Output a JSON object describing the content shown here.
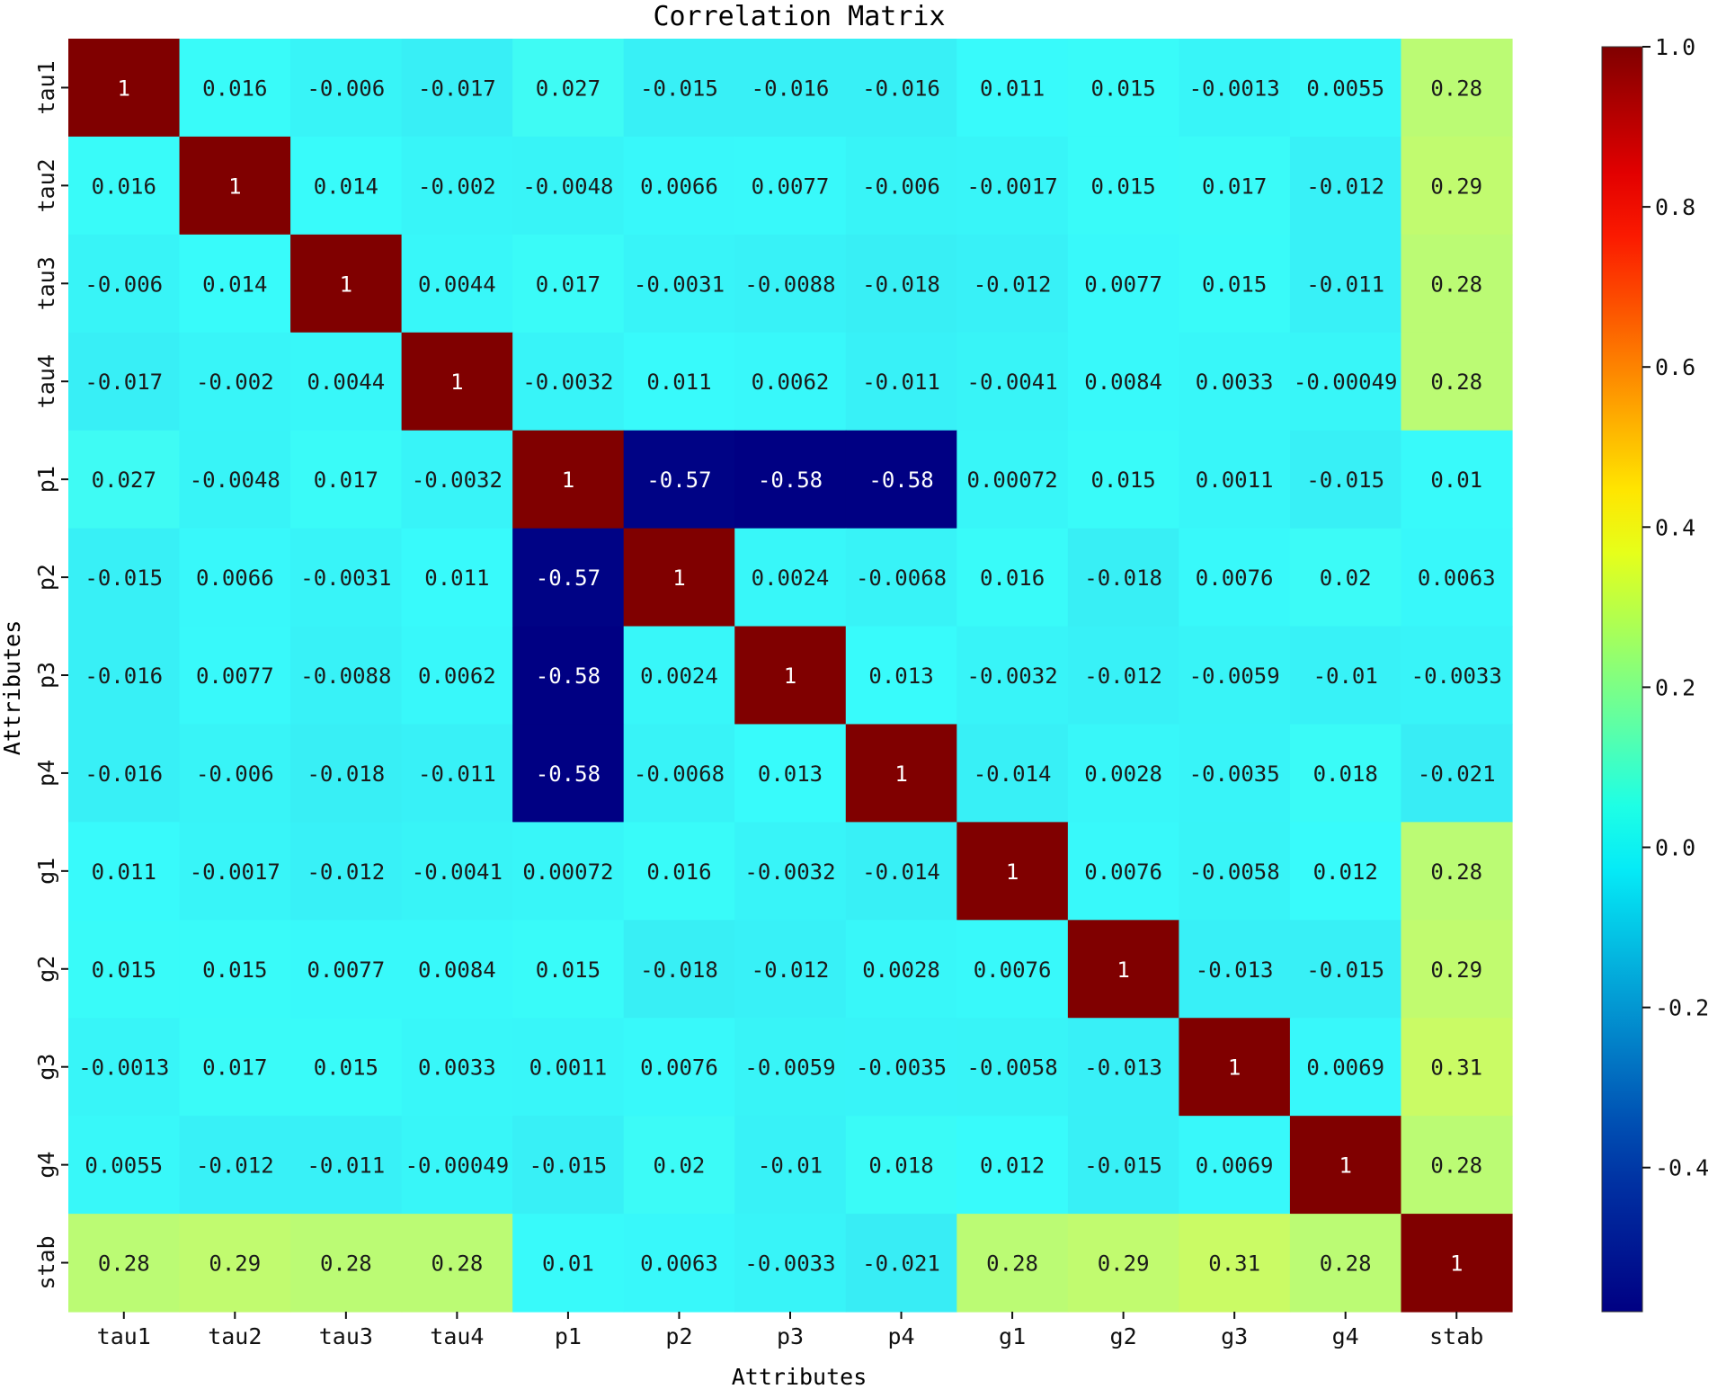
{
  "chart_data": {
    "type": "heatmap",
    "title": "Correlation Matrix",
    "xlabel": "Attributes",
    "ylabel": "Attributes",
    "categories": [
      "tau1",
      "tau2",
      "tau3",
      "tau4",
      "p1",
      "p2",
      "p3",
      "p4",
      "g1",
      "g2",
      "g3",
      "g4",
      "stab"
    ],
    "matrix": [
      [
        "1",
        "0.016",
        "-0.006",
        "-0.017",
        "0.027",
        "-0.015",
        "-0.016",
        "-0.016",
        "0.011",
        "0.015",
        "-0.0013",
        "0.0055",
        "0.28"
      ],
      [
        "0.016",
        "1",
        "0.014",
        "-0.002",
        "-0.0048",
        "0.0066",
        "0.0077",
        "-0.006",
        "-0.0017",
        "0.015",
        "0.017",
        "-0.012",
        "0.29"
      ],
      [
        "-0.006",
        "0.014",
        "1",
        "0.0044",
        "0.017",
        "-0.0031",
        "-0.0088",
        "-0.018",
        "-0.012",
        "0.0077",
        "0.015",
        "-0.011",
        "0.28"
      ],
      [
        "-0.017",
        "-0.002",
        "0.0044",
        "1",
        "-0.0032",
        "0.011",
        "0.0062",
        "-0.011",
        "-0.0041",
        "0.0084",
        "0.0033",
        "-0.00049",
        "0.28"
      ],
      [
        "0.027",
        "-0.0048",
        "0.017",
        "-0.0032",
        "1",
        "-0.57",
        "-0.58",
        "-0.58",
        "0.00072",
        "0.015",
        "0.0011",
        "-0.015",
        "0.01"
      ],
      [
        "-0.015",
        "0.0066",
        "-0.0031",
        "0.011",
        "-0.57",
        "1",
        "0.0024",
        "-0.0068",
        "0.016",
        "-0.018",
        "0.0076",
        "0.02",
        "0.0063"
      ],
      [
        "-0.016",
        "0.0077",
        "-0.0088",
        "0.0062",
        "-0.58",
        "0.0024",
        "1",
        "0.013",
        "-0.0032",
        "-0.012",
        "-0.0059",
        "-0.01",
        "-0.0033"
      ],
      [
        "-0.016",
        "-0.006",
        "-0.018",
        "-0.011",
        "-0.58",
        "-0.0068",
        "0.013",
        "1",
        "-0.014",
        "0.0028",
        "-0.0035",
        "0.018",
        "-0.021"
      ],
      [
        "0.011",
        "-0.0017",
        "-0.012",
        "-0.0041",
        "0.00072",
        "0.016",
        "-0.0032",
        "-0.014",
        "1",
        "0.0076",
        "-0.0058",
        "0.012",
        "0.28"
      ],
      [
        "0.015",
        "0.015",
        "0.0077",
        "0.0084",
        "0.015",
        "-0.018",
        "-0.012",
        "0.0028",
        "0.0076",
        "1",
        "-0.013",
        "-0.015",
        "0.29"
      ],
      [
        "-0.0013",
        "0.017",
        "0.015",
        "0.0033",
        "0.0011",
        "0.0076",
        "-0.0059",
        "-0.0035",
        "-0.0058",
        "-0.013",
        "1",
        "0.0069",
        "0.31"
      ],
      [
        "0.0055",
        "-0.012",
        "-0.011",
        "-0.00049",
        "-0.015",
        "0.02",
        "-0.01",
        "0.018",
        "0.012",
        "-0.015",
        "0.0069",
        "1",
        "0.28"
      ],
      [
        "0.28",
        "0.29",
        "0.28",
        "0.28",
        "0.01",
        "0.0063",
        "-0.0033",
        "-0.021",
        "0.28",
        "0.29",
        "0.31",
        "0.28",
        "1"
      ]
    ],
    "colorbar": {
      "colormap": "jet",
      "vmin": -0.58,
      "vmax": 1.0,
      "ticks": [
        "1.0",
        "0.8",
        "0.6",
        "0.4",
        "0.2",
        "0.0",
        "-0.2",
        "-0.4"
      ]
    },
    "legend_position": "right"
  }
}
